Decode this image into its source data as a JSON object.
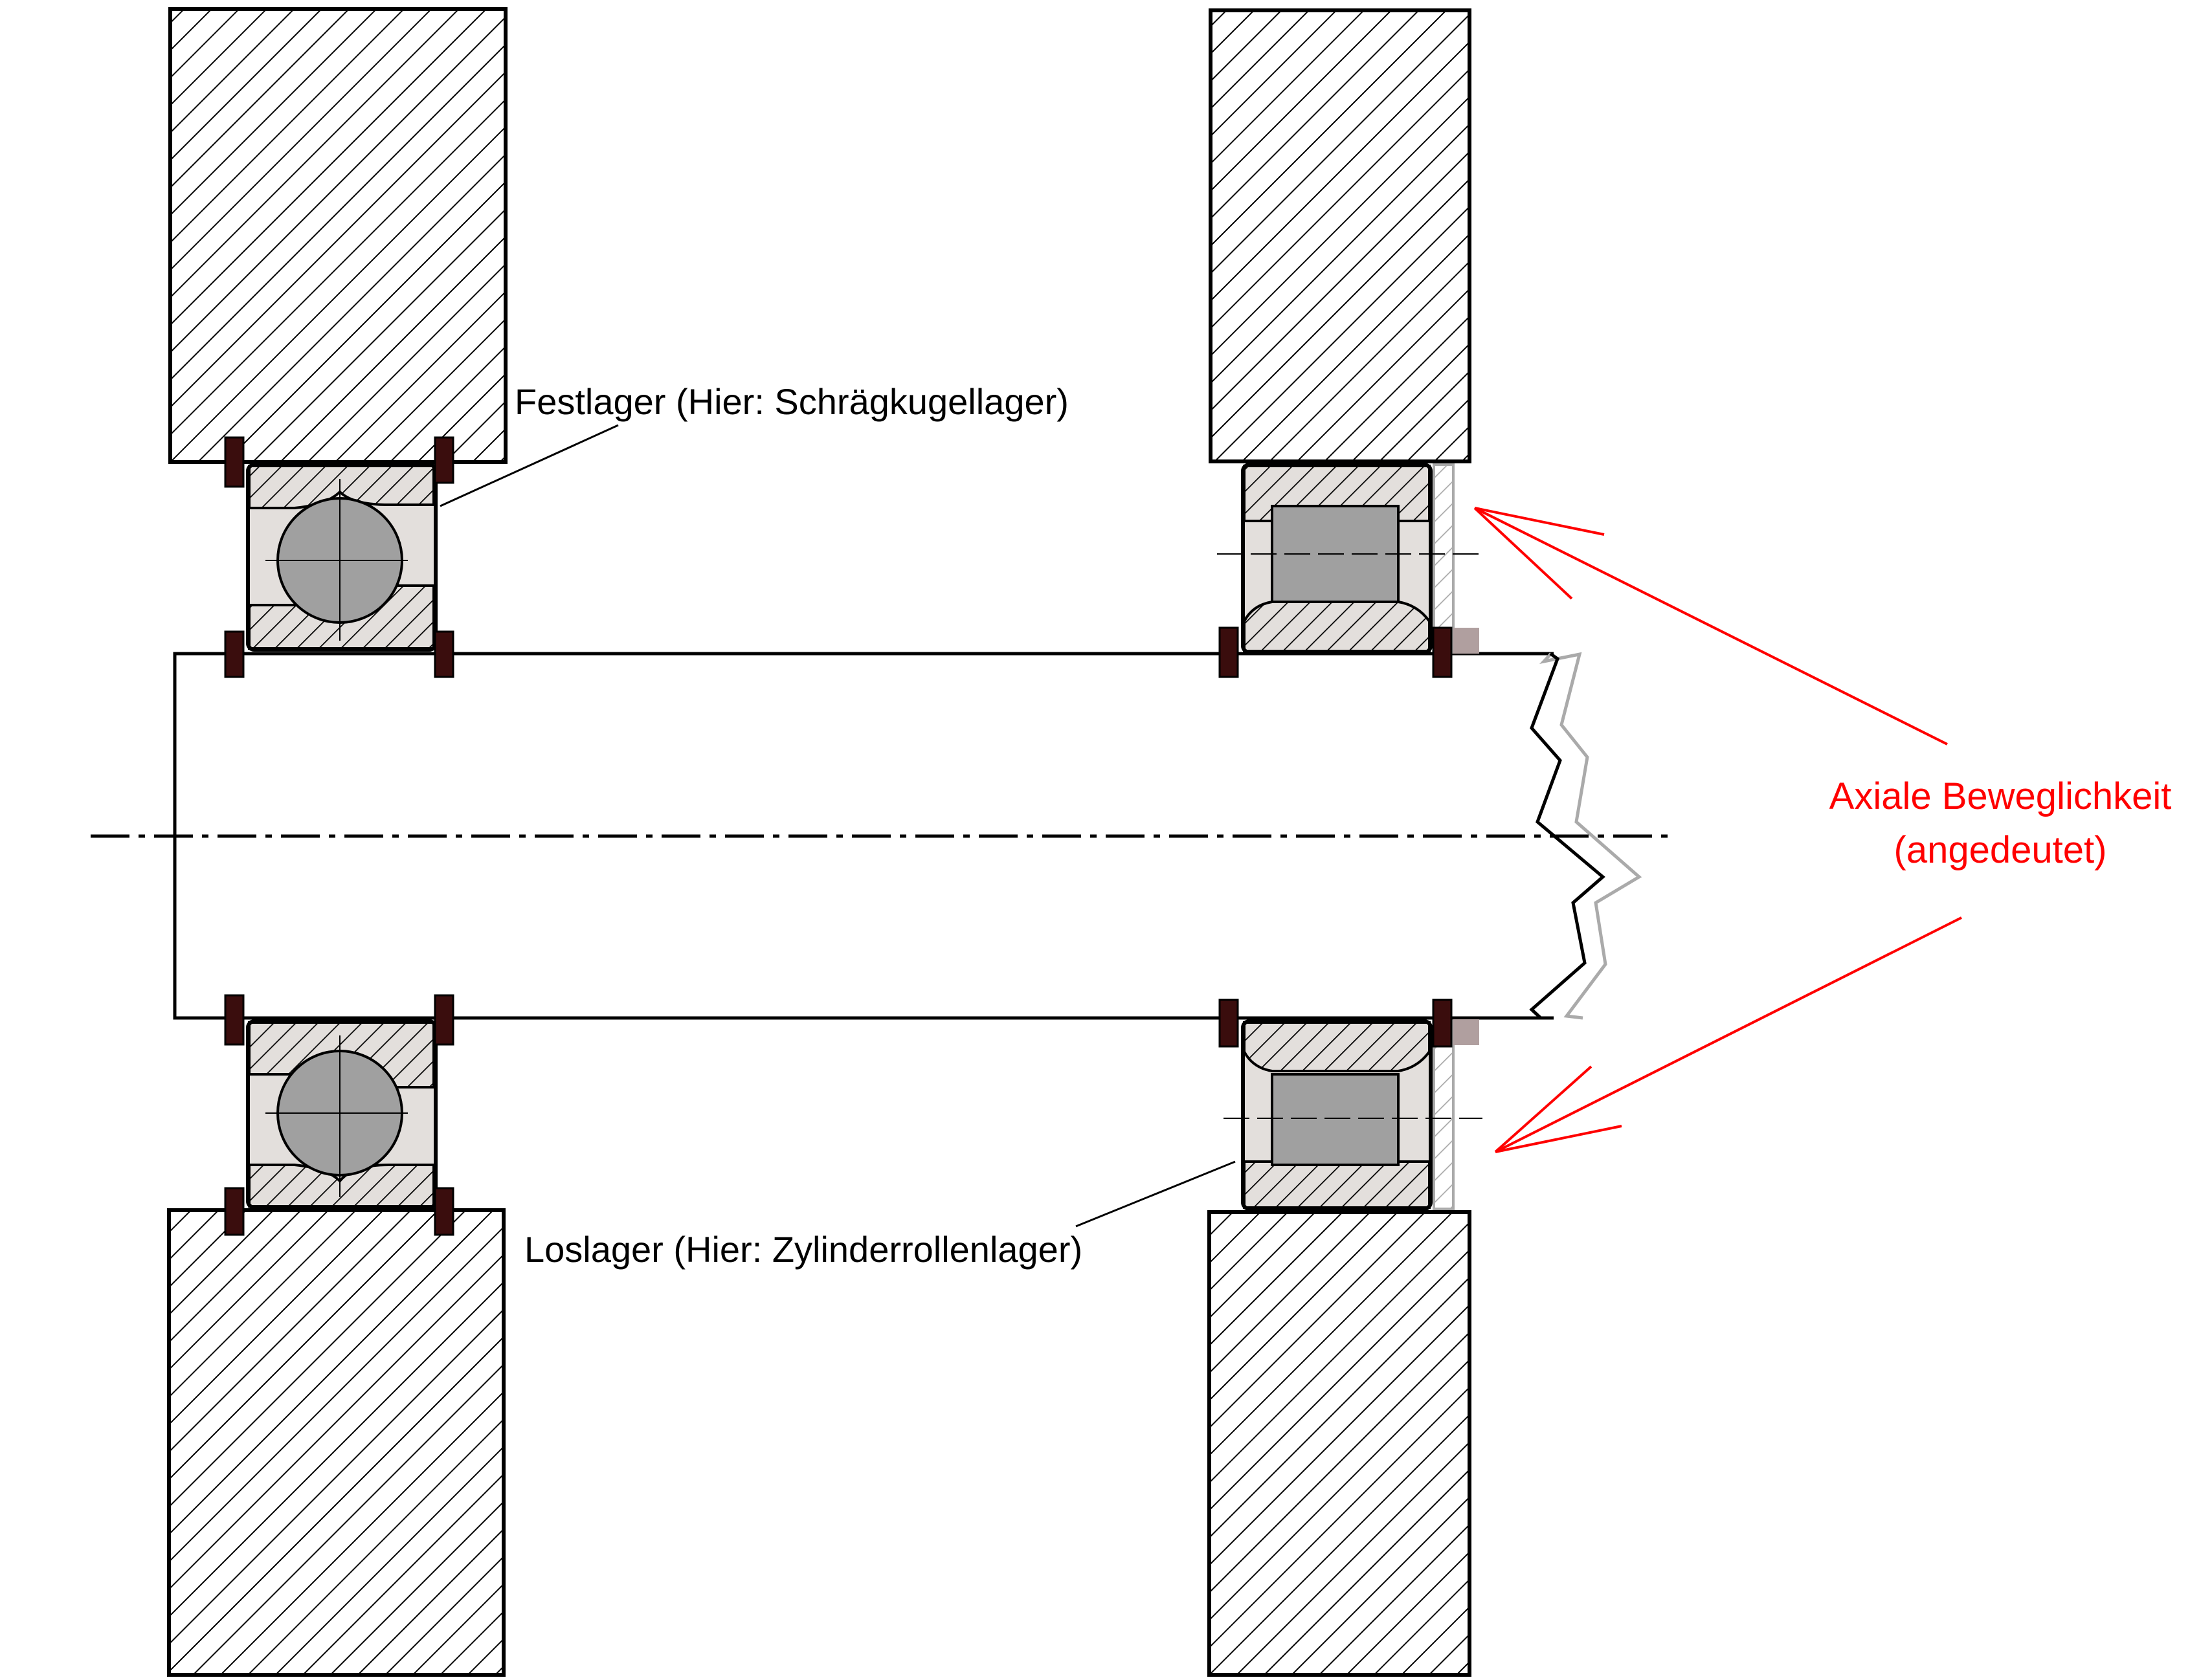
{
  "labels": {
    "fixed_bearing": "Festlager (Hier: Schrägkugellager)",
    "floating_bearing": "Loslager (Hier: Zylinderrollenlager)",
    "axial_line1": "Axiale Beweglichkeit",
    "axial_line2": "(angedeutet)"
  },
  "colors": {
    "annotation": "#ff0000",
    "outline": "#000000",
    "ball": "#a0a0a0",
    "roller": "#a0a0a0",
    "bearing_fill": "#e3dfdc",
    "circlip": "#3a0d0d",
    "ghost": "#aaaaaa"
  }
}
